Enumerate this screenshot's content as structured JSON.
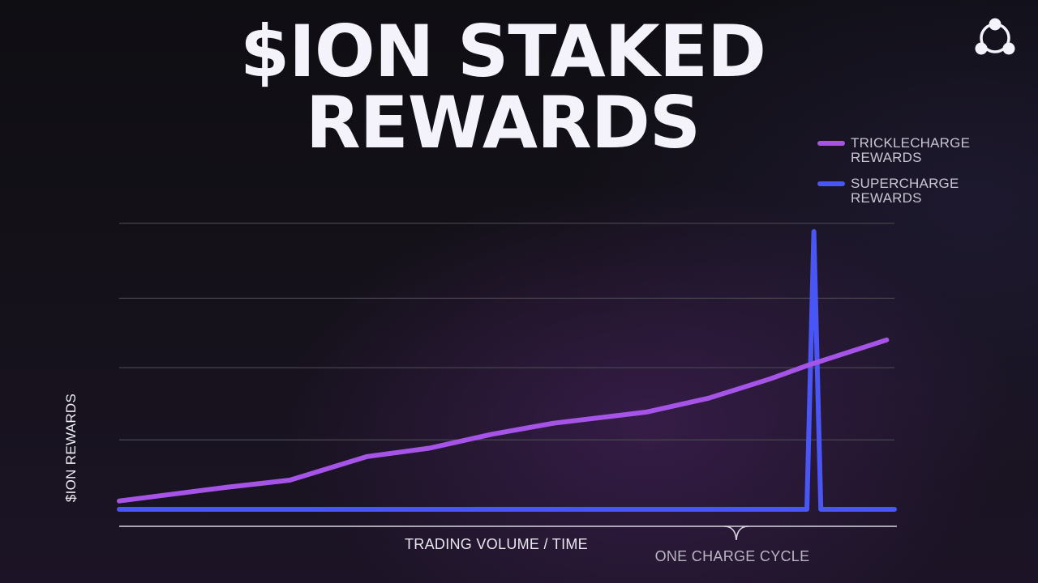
{
  "header": {
    "title_line1": "$ION STAKED",
    "title_line2": "REWARDS",
    "logo_icon": "network-triangle-icon"
  },
  "colors": {
    "background": "#131019",
    "series_tricklecharge": "#a653e8",
    "series_supercharge": "#4a55f5",
    "gridline": "#4a4752",
    "axis": "#d8d6df",
    "title": "#f4f2fb"
  },
  "chart_data": {
    "type": "line",
    "title": "$ION STAKED REWARDS",
    "xlabel": "TRADING VOLUME / TIME",
    "ylabel": "$ION REWARDS",
    "xlim": [
      0,
      100
    ],
    "ylim": [
      0,
      100
    ],
    "grid": true,
    "grid_y_values": [
      25,
      51,
      76,
      103
    ],
    "axis_ticks_shown": false,
    "legend_position": "top-right",
    "series": [
      {
        "name": "TRICKLECHARGE REWARDS",
        "color": "#a653e8",
        "points": [
          [
            0,
            3
          ],
          [
            14,
            8
          ],
          [
            22,
            10.5
          ],
          [
            32,
            19
          ],
          [
            40,
            22
          ],
          [
            48,
            27
          ],
          [
            56,
            31
          ],
          [
            68,
            35
          ],
          [
            76,
            40
          ],
          [
            84,
            47
          ],
          [
            89,
            52
          ],
          [
            99,
            61
          ]
        ]
      },
      {
        "name": "SUPERCHARGE REWARDS",
        "color": "#4a55f5",
        "points": [
          [
            0,
            0
          ],
          [
            88.7,
            0
          ],
          [
            89.6,
            100
          ],
          [
            90.5,
            0
          ],
          [
            100,
            0
          ]
        ]
      }
    ],
    "annotations": [
      {
        "text": "ONE CHARGE CYCLE",
        "type": "brace",
        "x_range": [
          0,
          100
        ],
        "brace_tip_x": 79.6
      }
    ]
  }
}
